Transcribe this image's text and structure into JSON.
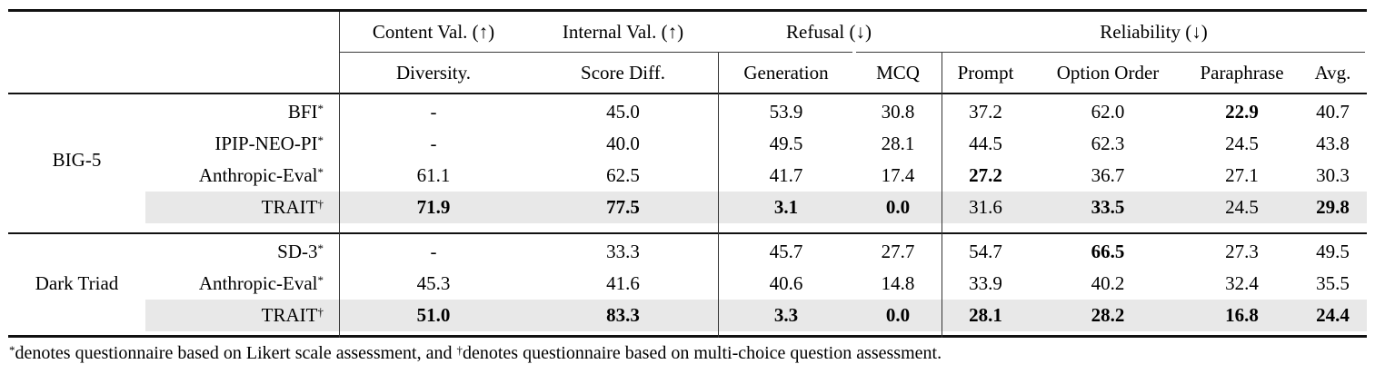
{
  "highlight_color": "#e8e8e8",
  "rule_color": "#111111",
  "header": {
    "groups": [
      {
        "label": "Content Val. (↑)"
      },
      {
        "label": "Internal Val. (↑)"
      },
      {
        "label": "Refusal (↓)"
      },
      {
        "label": "Reliability (↓)"
      }
    ],
    "columns": [
      "Diversity.",
      "Score Diff.",
      "Generation",
      "MCQ",
      "Prompt",
      "Option Order",
      "Paraphrase",
      "Avg."
    ]
  },
  "body": {
    "groups": [
      {
        "name": "BIG-5",
        "rows": [
          {
            "label": "BFI",
            "marker": "*",
            "cells": [
              {
                "t": "-"
              },
              {
                "t": "45.0"
              },
              {
                "t": "53.9"
              },
              {
                "t": "30.8"
              },
              {
                "t": "37.2"
              },
              {
                "t": "62.0"
              },
              {
                "t": "22.9",
                "b": true
              },
              {
                "t": "40.7"
              }
            ]
          },
          {
            "label": "IPIP-NEO-PI",
            "marker": "*",
            "cells": [
              {
                "t": "-"
              },
              {
                "t": "40.0"
              },
              {
                "t": "49.5"
              },
              {
                "t": "28.1"
              },
              {
                "t": "44.5"
              },
              {
                "t": "62.3"
              },
              {
                "t": "24.5"
              },
              {
                "t": "43.8"
              }
            ]
          },
          {
            "label": "Anthropic-Eval",
            "marker": "*",
            "cells": [
              {
                "t": "61.1"
              },
              {
                "t": "62.5"
              },
              {
                "t": "41.7"
              },
              {
                "t": "17.4"
              },
              {
                "t": "27.2",
                "b": true
              },
              {
                "t": "36.7"
              },
              {
                "t": "27.1"
              },
              {
                "t": "30.3"
              }
            ]
          },
          {
            "label": "TRAIT",
            "marker": "†",
            "highlight": true,
            "cells": [
              {
                "t": "71.9",
                "b": true
              },
              {
                "t": "77.5",
                "b": true
              },
              {
                "t": "3.1",
                "b": true
              },
              {
                "t": "0.0",
                "b": true
              },
              {
                "t": "31.6"
              },
              {
                "t": "33.5",
                "b": true
              },
              {
                "t": "24.5"
              },
              {
                "t": "29.8",
                "b": true
              }
            ]
          }
        ]
      },
      {
        "name": "Dark Triad",
        "rows": [
          {
            "label": "SD-3",
            "marker": "*",
            "cells": [
              {
                "t": "-"
              },
              {
                "t": "33.3"
              },
              {
                "t": "45.7"
              },
              {
                "t": "27.7"
              },
              {
                "t": "54.7"
              },
              {
                "t": "66.5",
                "b": true
              },
              {
                "t": "27.3"
              },
              {
                "t": "49.5"
              }
            ]
          },
          {
            "label": "Anthropic-Eval",
            "marker": "*",
            "cells": [
              {
                "t": "45.3"
              },
              {
                "t": "41.6"
              },
              {
                "t": "40.6"
              },
              {
                "t": "14.8"
              },
              {
                "t": "33.9"
              },
              {
                "t": "40.2"
              },
              {
                "t": "32.4"
              },
              {
                "t": "35.5"
              }
            ]
          },
          {
            "label": "TRAIT",
            "marker": "†",
            "highlight": true,
            "cells": [
              {
                "t": "51.0",
                "b": true
              },
              {
                "t": "83.3",
                "b": true
              },
              {
                "t": "3.3",
                "b": true
              },
              {
                "t": "0.0",
                "b": true
              },
              {
                "t": "28.1",
                "b": true
              },
              {
                "t": "28.2",
                "b": true
              },
              {
                "t": "16.8",
                "b": true
              },
              {
                "t": "24.4",
                "b": true
              }
            ]
          }
        ]
      }
    ]
  },
  "footnote": {
    "marker1": "*",
    "part1": "denotes questionnaire based on Likert scale assessment, and ",
    "marker2": "†",
    "part2": "denotes questionnaire based on multi-choice question assessment."
  }
}
